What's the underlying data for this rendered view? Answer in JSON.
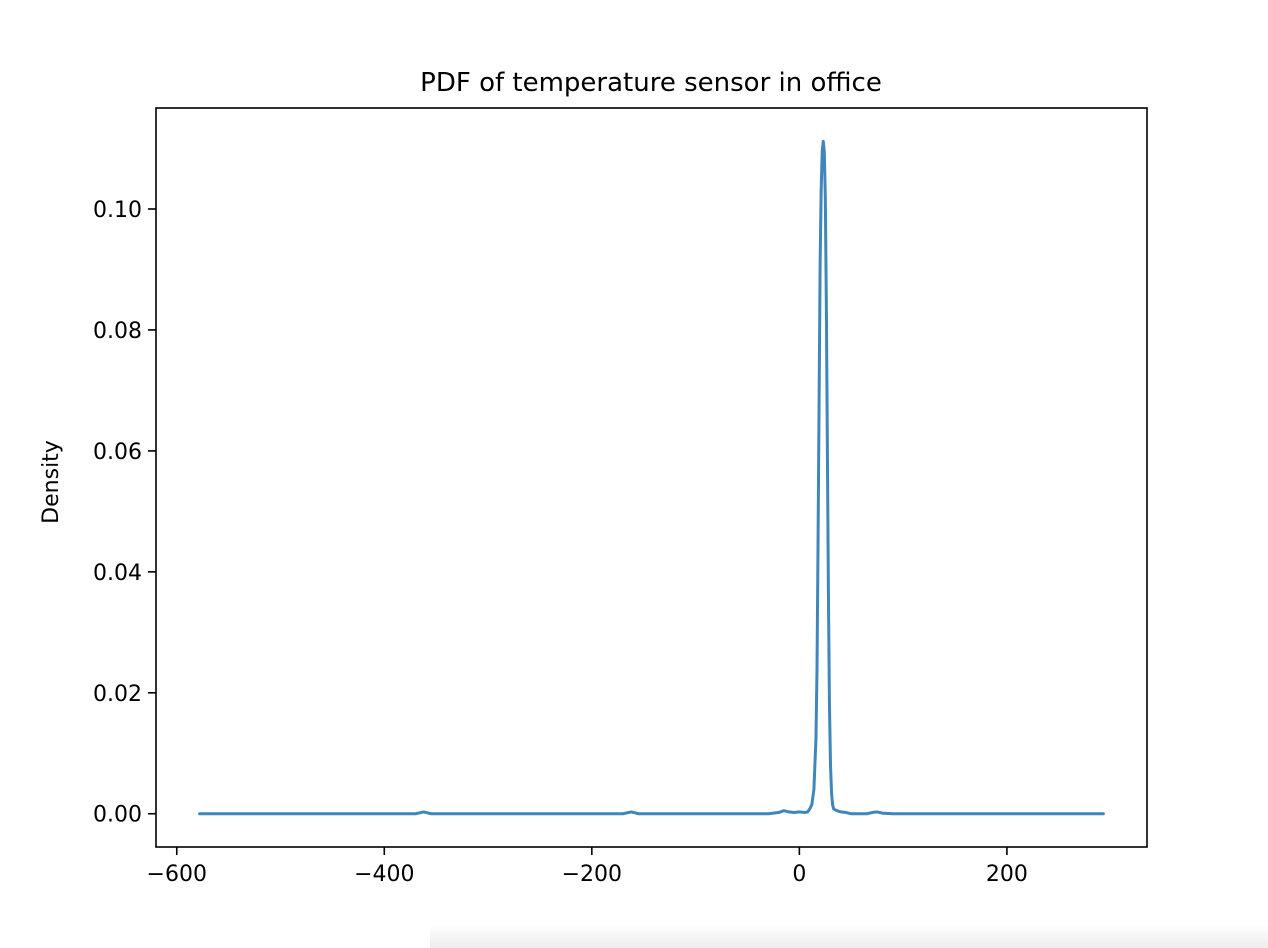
{
  "chart_data": {
    "type": "line",
    "title": "PDF of temperature sensor in office",
    "xlabel": "",
    "ylabel": "Density",
    "xlim": [
      -620,
      335
    ],
    "ylim": [
      -0.0055,
      0.1167
    ],
    "xticks": [
      -600,
      -400,
      -200,
      0,
      200
    ],
    "xtick_labels": [
      "−600",
      "−400",
      "−200",
      "0",
      "200"
    ],
    "yticks": [
      0.0,
      0.02,
      0.04,
      0.06,
      0.08,
      0.1
    ],
    "ytick_labels": [
      "0.00",
      "0.02",
      "0.04",
      "0.06",
      "0.08",
      "0.10"
    ],
    "grid": false,
    "series": [
      {
        "color": "#3f86bb",
        "x": [
          -578,
          -400,
          -370,
          -362,
          -355,
          -345,
          -200,
          -170,
          -162,
          -155,
          -145,
          -60,
          -30,
          -20,
          -15,
          -10,
          -5,
          0,
          5,
          8,
          10,
          12,
          14,
          16,
          17,
          18,
          19,
          20,
          21,
          22,
          23,
          24,
          25,
          26,
          27,
          28,
          29,
          30,
          31,
          32,
          33,
          35,
          38,
          40,
          45,
          50,
          55,
          65,
          70,
          75,
          80,
          90,
          120,
          200,
          293
        ],
        "y": [
          0.0,
          0.0,
          0.0,
          0.0003,
          0.0,
          0.0,
          0.0,
          0.0,
          0.0003,
          0.0,
          0.0,
          0.0,
          0.0,
          0.0002,
          0.0005,
          0.0003,
          0.0002,
          0.0003,
          0.0002,
          0.0003,
          0.0008,
          0.0015,
          0.004,
          0.0125,
          0.024,
          0.045,
          0.068,
          0.091,
          0.103,
          0.1095,
          0.1112,
          0.1095,
          0.102,
          0.084,
          0.06,
          0.036,
          0.018,
          0.008,
          0.0035,
          0.0015,
          0.0008,
          0.0006,
          0.0004,
          0.0003,
          0.0002,
          0.0,
          0.0,
          0.0,
          0.0002,
          0.0003,
          0.0001,
          0.0,
          0.0,
          0.0,
          0.0
        ]
      }
    ]
  }
}
